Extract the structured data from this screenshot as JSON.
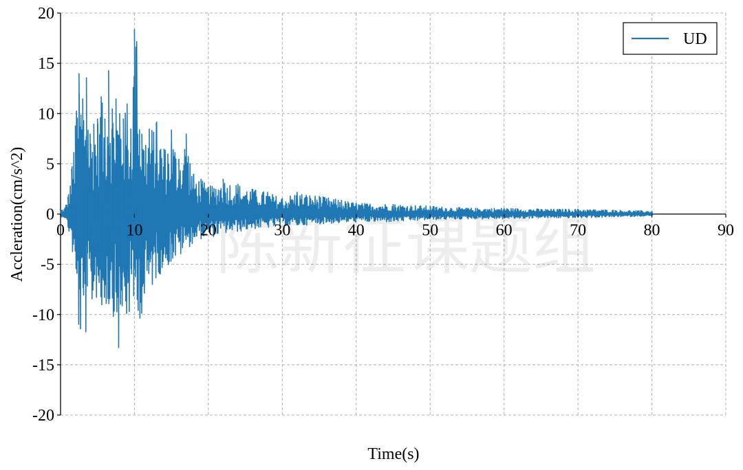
{
  "chart_data": {
    "type": "line",
    "title": "",
    "xlabel": "Time(s)",
    "ylabel": "Accleration(cm/s^2)",
    "xlim": [
      0,
      90
    ],
    "ylim": [
      -20,
      20
    ],
    "x_ticks": [
      0,
      10,
      20,
      30,
      40,
      50,
      60,
      70,
      80,
      90
    ],
    "y_ticks": [
      20,
      15,
      10,
      5,
      0,
      -5,
      -10,
      -15,
      -20
    ],
    "grid": true,
    "legend_position": "top-right",
    "series": [
      {
        "name": "UD",
        "color": "#1f77b4",
        "x_start": 0,
        "x_end": 80,
        "envelope_peaks": [
          [
            0.5,
            0.5,
            -0.3
          ],
          [
            1.0,
            1.7,
            -1.5
          ],
          [
            1.5,
            4.5,
            -3.0
          ],
          [
            2.0,
            8.8,
            -7.7
          ],
          [
            2.5,
            14.0,
            -12.5
          ],
          [
            3.0,
            11.5,
            -13.5
          ],
          [
            3.5,
            13.6,
            -12.0
          ],
          [
            4.0,
            8.0,
            -9.0
          ],
          [
            4.5,
            9.0,
            -10.0
          ],
          [
            5.0,
            9.5,
            -8.0
          ],
          [
            5.5,
            11.7,
            -11.0
          ],
          [
            6.0,
            9.5,
            -9.0
          ],
          [
            6.5,
            14.3,
            -10.0
          ],
          [
            7.0,
            10.5,
            -9.5
          ],
          [
            7.5,
            11.5,
            -12.0
          ],
          [
            8.0,
            10.0,
            -15.0
          ],
          [
            8.5,
            9.5,
            -10.5
          ],
          [
            9.0,
            11.0,
            -11.5
          ],
          [
            9.5,
            8.5,
            -10.0
          ],
          [
            10.0,
            18.4,
            -10.5
          ],
          [
            10.3,
            17.2,
            -9.0
          ],
          [
            11.0,
            8.0,
            -11.5
          ],
          [
            12.0,
            8.5,
            -8.0
          ],
          [
            13.0,
            9.2,
            -6.5
          ],
          [
            14.0,
            6.5,
            -5.5
          ],
          [
            15.0,
            8.4,
            -5.0
          ],
          [
            16.0,
            5.5,
            -4.5
          ],
          [
            17.0,
            8.0,
            -3.5
          ],
          [
            18.0,
            4.0,
            -3.0
          ],
          [
            19.0,
            3.5,
            -2.5
          ],
          [
            20.0,
            2.7,
            -2.4
          ],
          [
            22.0,
            3.5,
            -2.0
          ],
          [
            24.0,
            3.0,
            -1.8
          ],
          [
            26.0,
            2.5,
            -1.5
          ],
          [
            28.0,
            2.2,
            -1.4
          ],
          [
            30.0,
            1.6,
            -1.2
          ],
          [
            32.0,
            2.2,
            -1.2
          ],
          [
            35.0,
            1.8,
            -1.0
          ],
          [
            38.0,
            1.4,
            -0.9
          ],
          [
            40.0,
            1.1,
            -0.8
          ],
          [
            45.0,
            1.0,
            -0.8
          ],
          [
            50.0,
            0.8,
            -0.6
          ],
          [
            55.0,
            0.6,
            -0.5
          ],
          [
            60.0,
            0.6,
            -0.5
          ],
          [
            65.0,
            0.5,
            -0.4
          ],
          [
            70.0,
            0.5,
            -0.4
          ],
          [
            75.0,
            0.4,
            -0.3
          ],
          [
            80.0,
            0.3,
            -0.2
          ]
        ]
      }
    ]
  },
  "legend": {
    "label": "UD"
  },
  "watermark": {
    "text": "陈新征课题组"
  }
}
